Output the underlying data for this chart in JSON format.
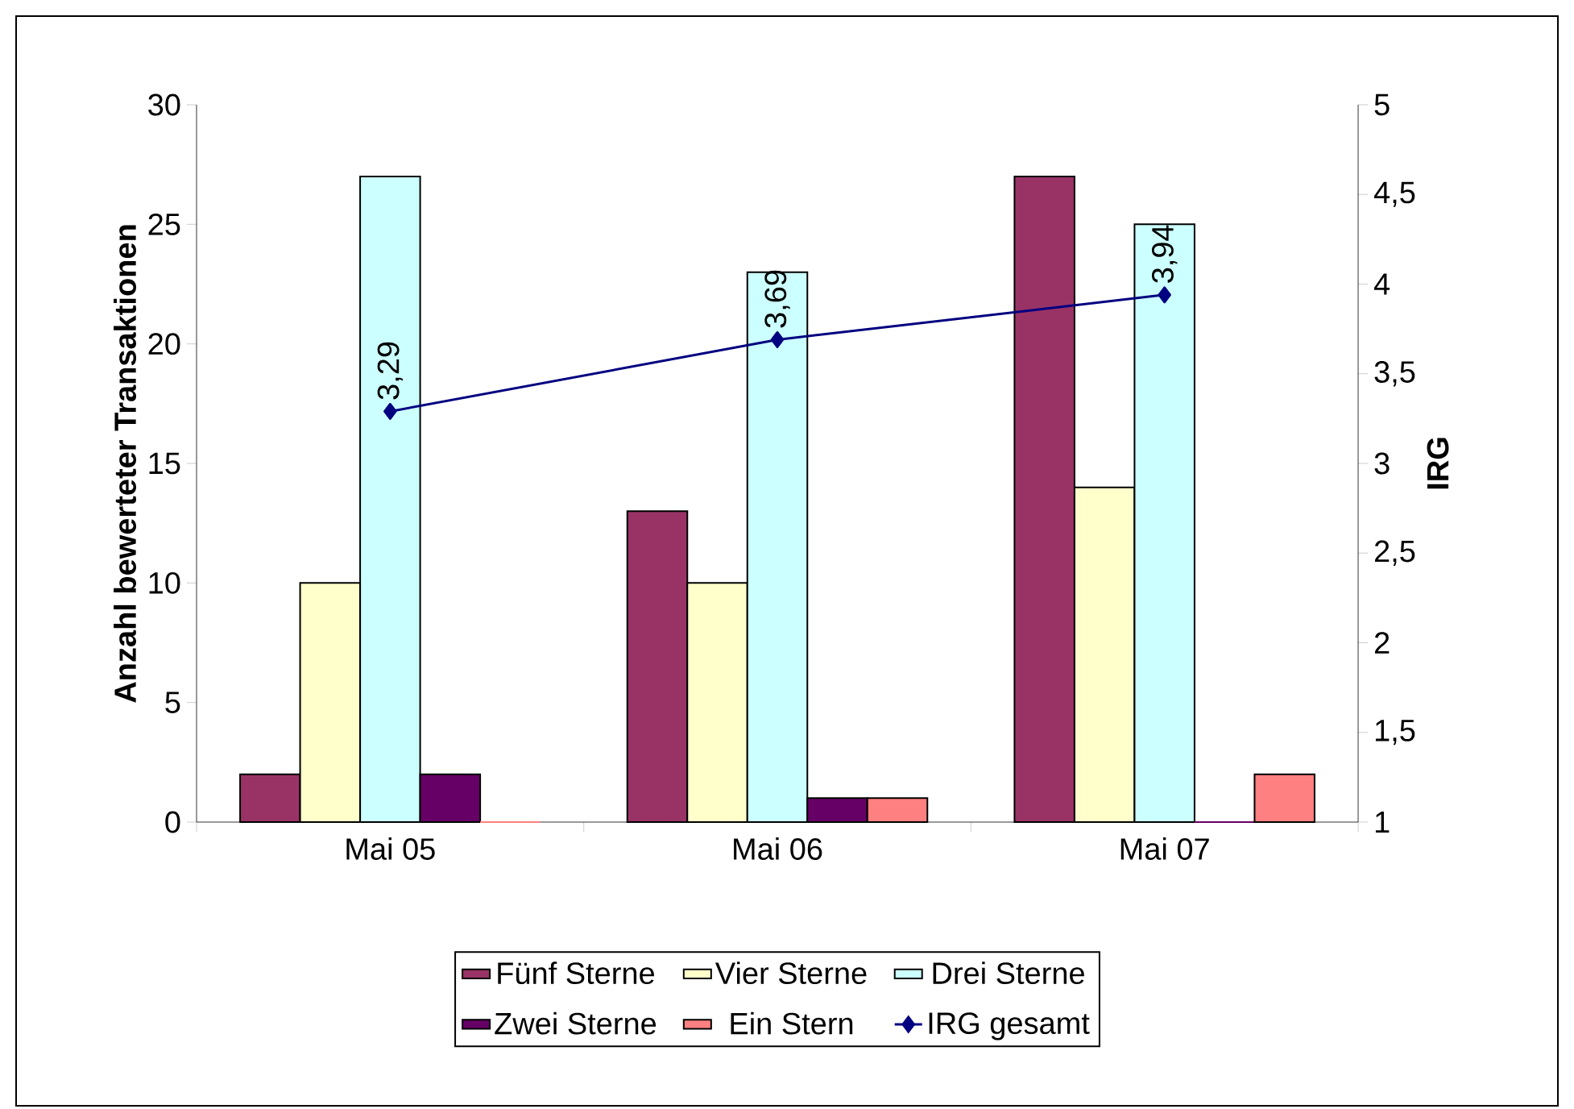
{
  "chart_data": {
    "type": "bar",
    "categories": [
      "Mai 05",
      "Mai 06",
      "Mai 07"
    ],
    "series": [
      {
        "name": "Fünf Sterne",
        "color": "#993366",
        "values": [
          2,
          13,
          27
        ]
      },
      {
        "name": "Vier Sterne",
        "color": "#ffffcc",
        "values": [
          10,
          10,
          14
        ]
      },
      {
        "name": "Drei Sterne",
        "color": "#ccffff",
        "values": [
          27,
          23,
          25
        ]
      },
      {
        "name": "Zwei Sterne",
        "color": "#660066",
        "values": [
          2,
          1,
          0
        ]
      },
      {
        "name": "Ein Stern",
        "color": "#ff8080",
        "values": [
          0,
          1,
          2
        ]
      },
      {
        "name": "IRG gesamt",
        "type": "line",
        "axis": "y2",
        "color": "#000080",
        "marker": "diamond",
        "values": [
          3.29,
          3.69,
          3.94
        ],
        "value_labels": [
          "3,29",
          "3,69",
          "3,94"
        ]
      }
    ],
    "ylabel": "Anzahl bewerteter Transaktionen",
    "y2label": "IRG",
    "ylim": [
      0,
      30
    ],
    "yticks": [
      0,
      5,
      10,
      15,
      20,
      25,
      30
    ],
    "y2lim": [
      1,
      5
    ],
    "y2ticks": [
      1,
      {
        "value": 1.5,
        "label": "1,5"
      },
      2,
      {
        "value": 2.5,
        "label": "2,5"
      },
      3,
      {
        "value": 3.5,
        "label": "3,5"
      },
      4,
      {
        "value": 4.5,
        "label": "4,5"
      },
      5
    ],
    "legend": "bottom"
  }
}
